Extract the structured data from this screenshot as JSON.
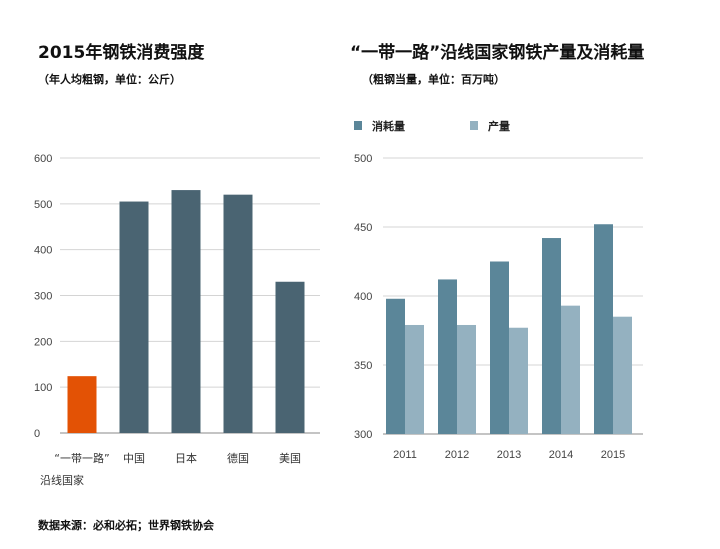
{
  "chart_data": [
    {
      "type": "bar",
      "title": "2015年钢铁消费强度",
      "subtitle": "（年人均粗钢，单位：公斤）",
      "categories": [
        "“一带一路”",
        "中国",
        "日本",
        "德国",
        "美国"
      ],
      "category_line2": [
        "沿线国家",
        "",
        "",
        "",
        ""
      ],
      "values": [
        124,
        505,
        530,
        520,
        330
      ],
      "colors": [
        "#e35205",
        "#4a6472",
        "#4a6472",
        "#4a6472",
        "#4a6472"
      ],
      "yticks": [
        "0",
        "100",
        "200",
        "300",
        "400",
        "500",
        "600"
      ],
      "ylim": [
        0,
        600
      ],
      "grid": true
    },
    {
      "type": "bar",
      "title": "“一带一路”沿线国家钢铁产量及消耗量",
      "subtitle": "（粗钢当量，单位：百万吨）",
      "categories": [
        "2011",
        "2012",
        "2013",
        "2014",
        "2015"
      ],
      "series": [
        {
          "name": "消耗量",
          "color": "#5b8699",
          "values": [
            398,
            412,
            425,
            442,
            452
          ]
        },
        {
          "name": "产量",
          "color": "#94b1c0",
          "values": [
            379,
            379,
            377,
            393,
            385
          ]
        }
      ],
      "yticks": [
        "300",
        "350",
        "400",
        "450",
        "500"
      ],
      "ylim": [
        300,
        500
      ],
      "legend": "top-left",
      "grid": true
    }
  ],
  "source": "数据来源：必和必拓；世界钢铁协会"
}
